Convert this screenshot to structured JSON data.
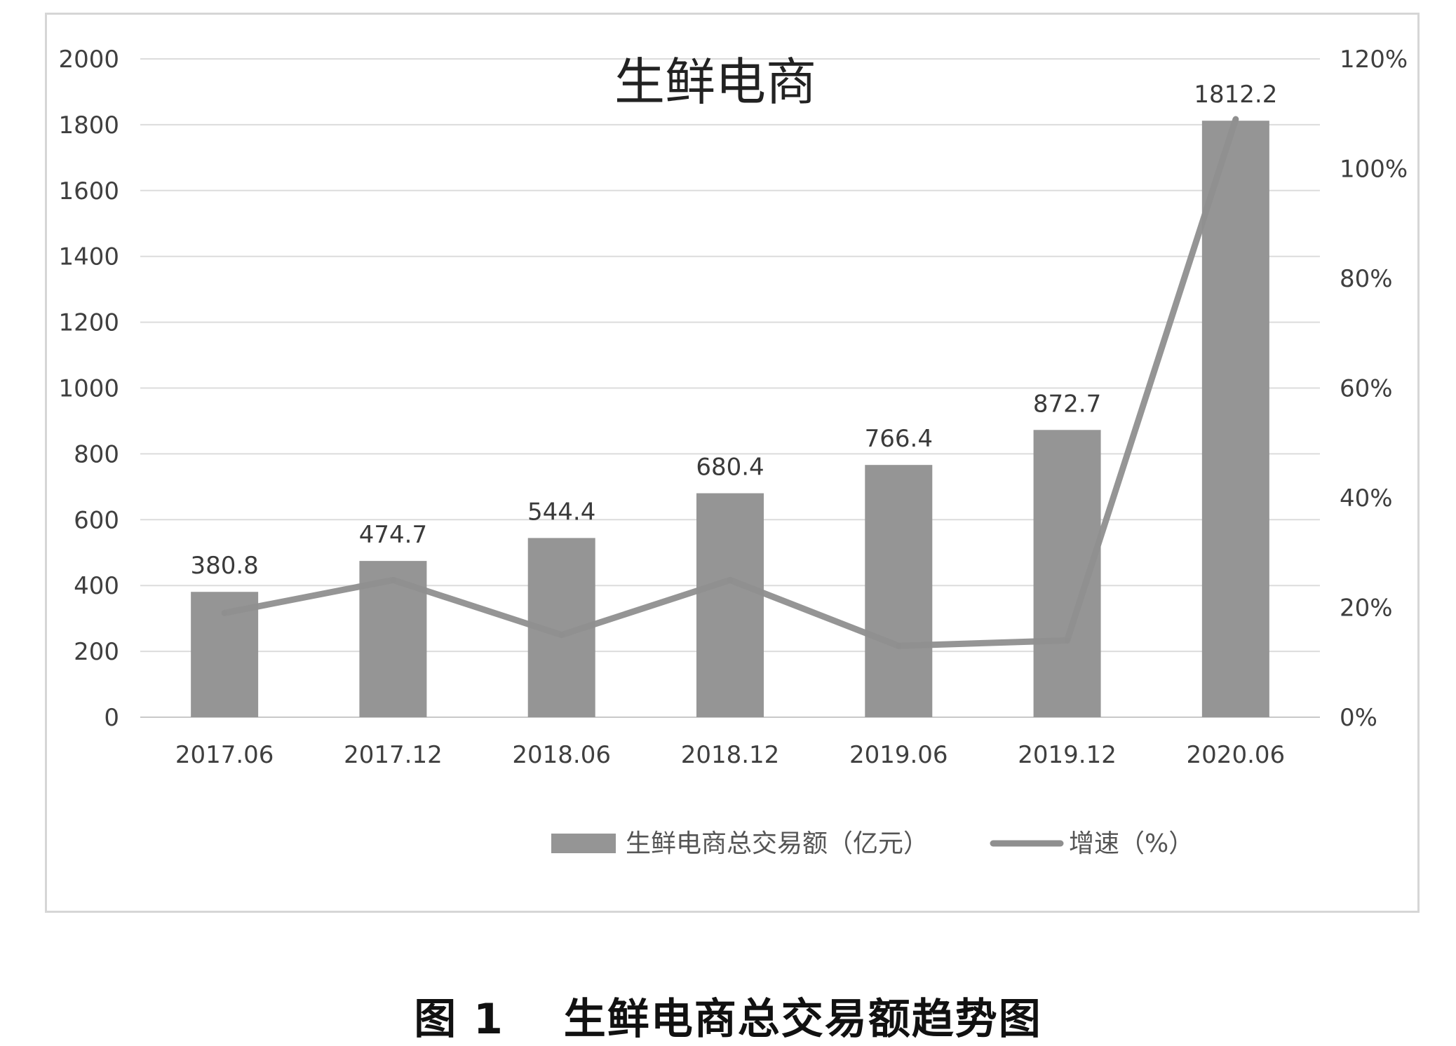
{
  "chart_data": {
    "type": "bar",
    "title": "生鲜电商",
    "categories": [
      "2017.06",
      "2017.12",
      "2018.06",
      "2018.12",
      "2019.06",
      "2019.12",
      "2020.06"
    ],
    "series": [
      {
        "name": "生鲜电商总交易额（亿元）",
        "type": "bar",
        "axis": "left",
        "color": "#959595",
        "values": [
          380.8,
          474.7,
          544.4,
          680.4,
          766.4,
          872.7,
          1812.2
        ],
        "labels": [
          "380.8",
          "474.7",
          "544.4",
          "680.4",
          "766.4",
          "872.7",
          "1812.2"
        ]
      },
      {
        "name": "增速（%）",
        "type": "line",
        "axis": "right",
        "color": "#8f8f8f",
        "values": [
          19,
          25,
          15,
          25,
          13,
          14,
          109
        ]
      }
    ],
    "y_left": {
      "min": 0,
      "max": 2000,
      "ticks": [
        "0",
        "200",
        "400",
        "600",
        "800",
        "1000",
        "1200",
        "1400",
        "1600",
        "1800",
        "2000"
      ]
    },
    "y_right": {
      "min": 0,
      "max": 120,
      "ticks": [
        "0%",
        "20%",
        "40%",
        "60%",
        "80%",
        "100%",
        "120%"
      ]
    },
    "grid": true,
    "legend_position": "bottom"
  },
  "caption": "图 1　 生鲜电商总交易额趋势图"
}
